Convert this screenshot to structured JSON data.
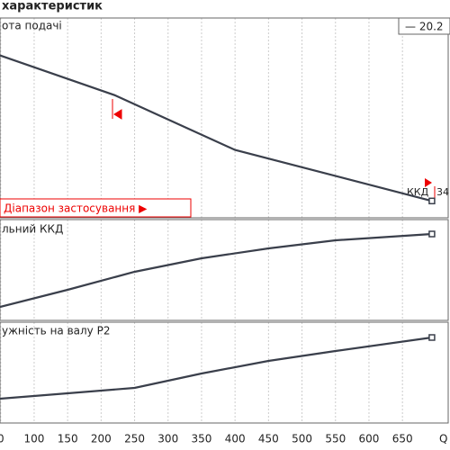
{
  "header": {
    "title": "характеристик"
  },
  "chart_data": [
    {
      "type": "line",
      "ylabel": "ота подачі",
      "legend": "— 20.2",
      "range_label": "Діапазон застосування ▶",
      "annotation": "ККД",
      "annotation2": "34",
      "x": [
        49,
        220,
        400,
        694
      ],
      "values": [
        84,
        63,
        34,
        7
      ],
      "color": "#3a3f4b",
      "xlim": [
        49,
        721
      ],
      "ylim": [
        0,
        100
      ]
    },
    {
      "type": "line",
      "ylabel": "льний ККД",
      "x": [
        49,
        150,
        250,
        350,
        450,
        550,
        694
      ],
      "values": [
        11,
        30,
        50,
        65,
        76,
        85,
        92
      ],
      "color": "#3a3f4b",
      "xlim": [
        49,
        721
      ],
      "ylim": [
        0,
        100
      ]
    },
    {
      "type": "line",
      "ylabel": "ужність на валу Р2",
      "x": [
        49,
        150,
        250,
        350,
        450,
        550,
        694
      ],
      "values": [
        23,
        29,
        35,
        51,
        65,
        76,
        91
      ],
      "color": "#3a3f4b",
      "xlim": [
        49,
        721
      ],
      "ylim": [
        0,
        100
      ],
      "xticks": [
        {
          "value": 50,
          "label": "0"
        },
        100,
        150,
        200,
        250,
        300,
        350,
        400,
        450,
        500,
        550,
        600,
        650
      ],
      "xlabel": "Q /"
    }
  ]
}
